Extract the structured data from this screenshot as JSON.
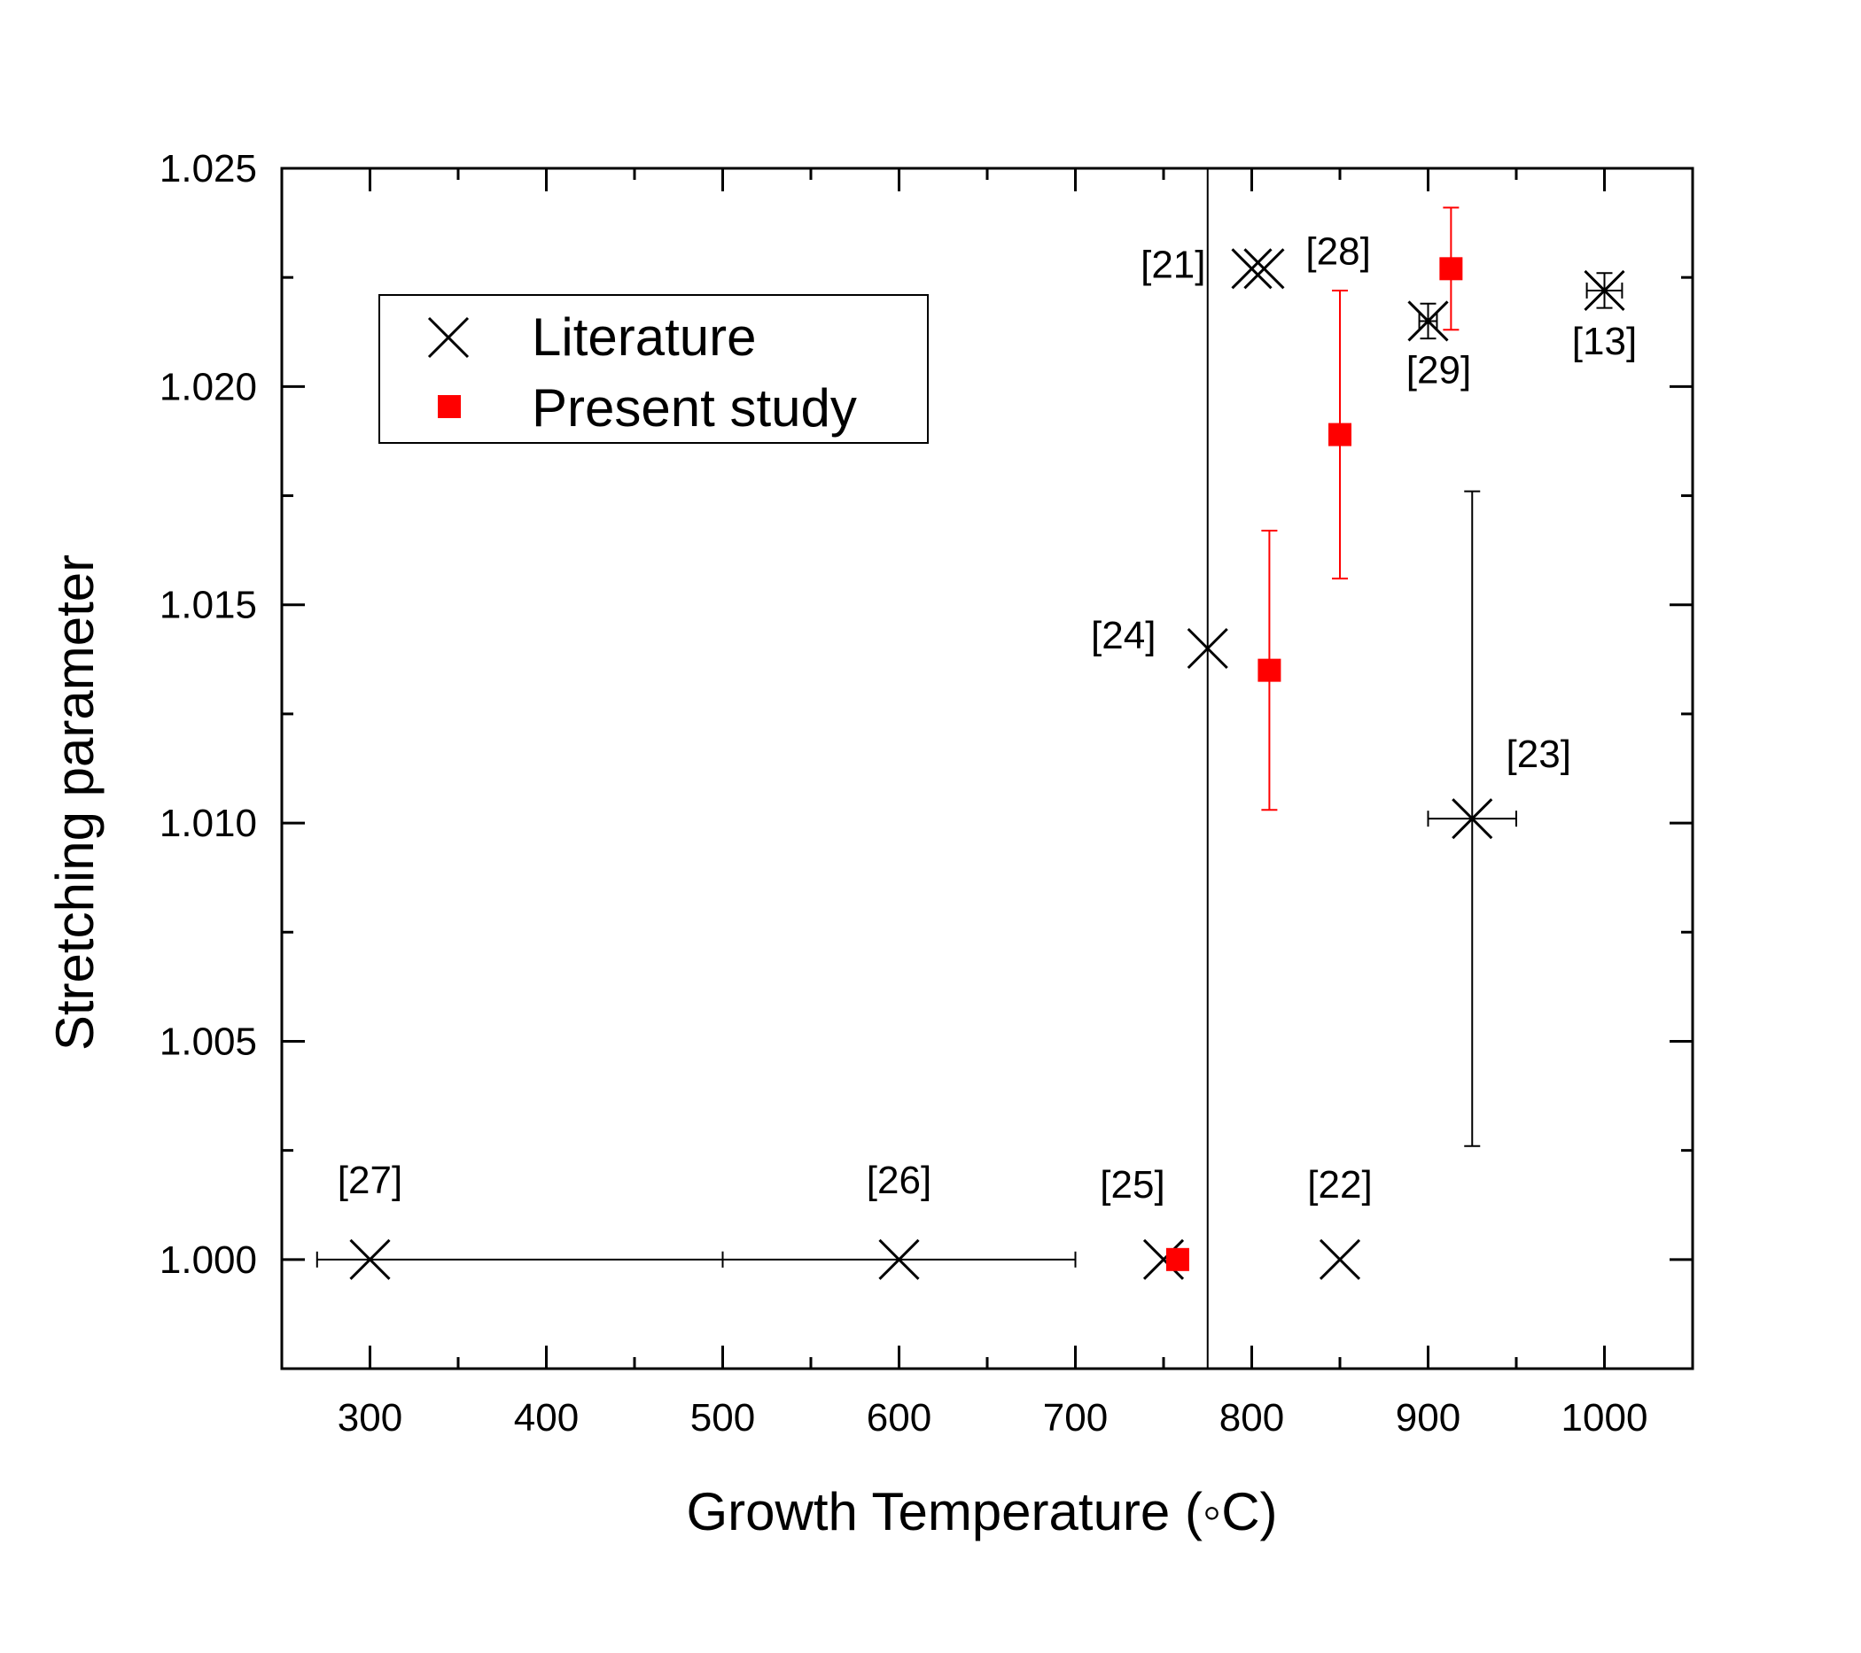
{
  "chart_data": {
    "type": "scatter",
    "xlabel": "Growth Temperature (◦C)",
    "ylabel": "Stretching parameter",
    "xlim": [
      250,
      1050
    ],
    "ylim": [
      0.9975,
      1.025
    ],
    "x_ticks": [
      300,
      400,
      500,
      600,
      700,
      800,
      900,
      1000
    ],
    "x_tick_labels": [
      "300",
      "400",
      "500",
      "600",
      "700",
      "800",
      "900",
      "1000"
    ],
    "y_ticks": [
      1.0,
      1.005,
      1.01,
      1.015,
      1.02,
      1.025
    ],
    "y_tick_labels": [
      "1.000",
      "1.005",
      "1.010",
      "1.015",
      "1.020",
      "1.025"
    ],
    "vertical_line_x": 775,
    "legend": {
      "position": "upper-left",
      "entries": [
        "Literature",
        "Present study"
      ]
    },
    "series": [
      {
        "name": "Literature",
        "marker": "x",
        "color": "#000000",
        "points": [
          {
            "x": 300,
            "y": 1.0,
            "label": "[27]",
            "x_err": [
              270,
              500
            ]
          },
          {
            "x": 600,
            "y": 1.0,
            "label": "[26]",
            "x_err": [
              500,
              700
            ]
          },
          {
            "x": 750,
            "y": 1.0,
            "label": "[25]"
          },
          {
            "x": 850,
            "y": 1.0,
            "label": "[22]"
          },
          {
            "x": 775,
            "y": 1.014,
            "label": "[24]"
          },
          {
            "x": 925,
            "y": 1.0101,
            "label": "[23]",
            "x_err": [
              900,
              950
            ],
            "y_err": [
              1.0026,
              1.0176
            ]
          },
          {
            "x": 800,
            "y": 1.0227,
            "label": "[21]"
          },
          {
            "x": 807,
            "y": 1.0227,
            "label": "[28]"
          },
          {
            "x": 900,
            "y": 1.0215,
            "label": "[29]",
            "x_err": [
              895,
              905
            ],
            "y_err": [
              1.0211,
              1.0219
            ]
          },
          {
            "x": 1000,
            "y": 1.0222,
            "label": "[13]",
            "x_err": [
              990,
              1010
            ],
            "y_err": [
              1.0218,
              1.0226
            ]
          }
        ]
      },
      {
        "name": "Present study",
        "marker": "square",
        "color": "#ff0000",
        "points": [
          {
            "x": 758,
            "y": 1.0
          },
          {
            "x": 810,
            "y": 1.0135,
            "y_err": [
              1.0103,
              1.0167
            ]
          },
          {
            "x": 850,
            "y": 1.0189,
            "y_err": [
              1.0156,
              1.0222
            ]
          },
          {
            "x": 913,
            "y": 1.0227,
            "y_err": [
              1.0213,
              1.0241
            ]
          }
        ]
      }
    ]
  }
}
